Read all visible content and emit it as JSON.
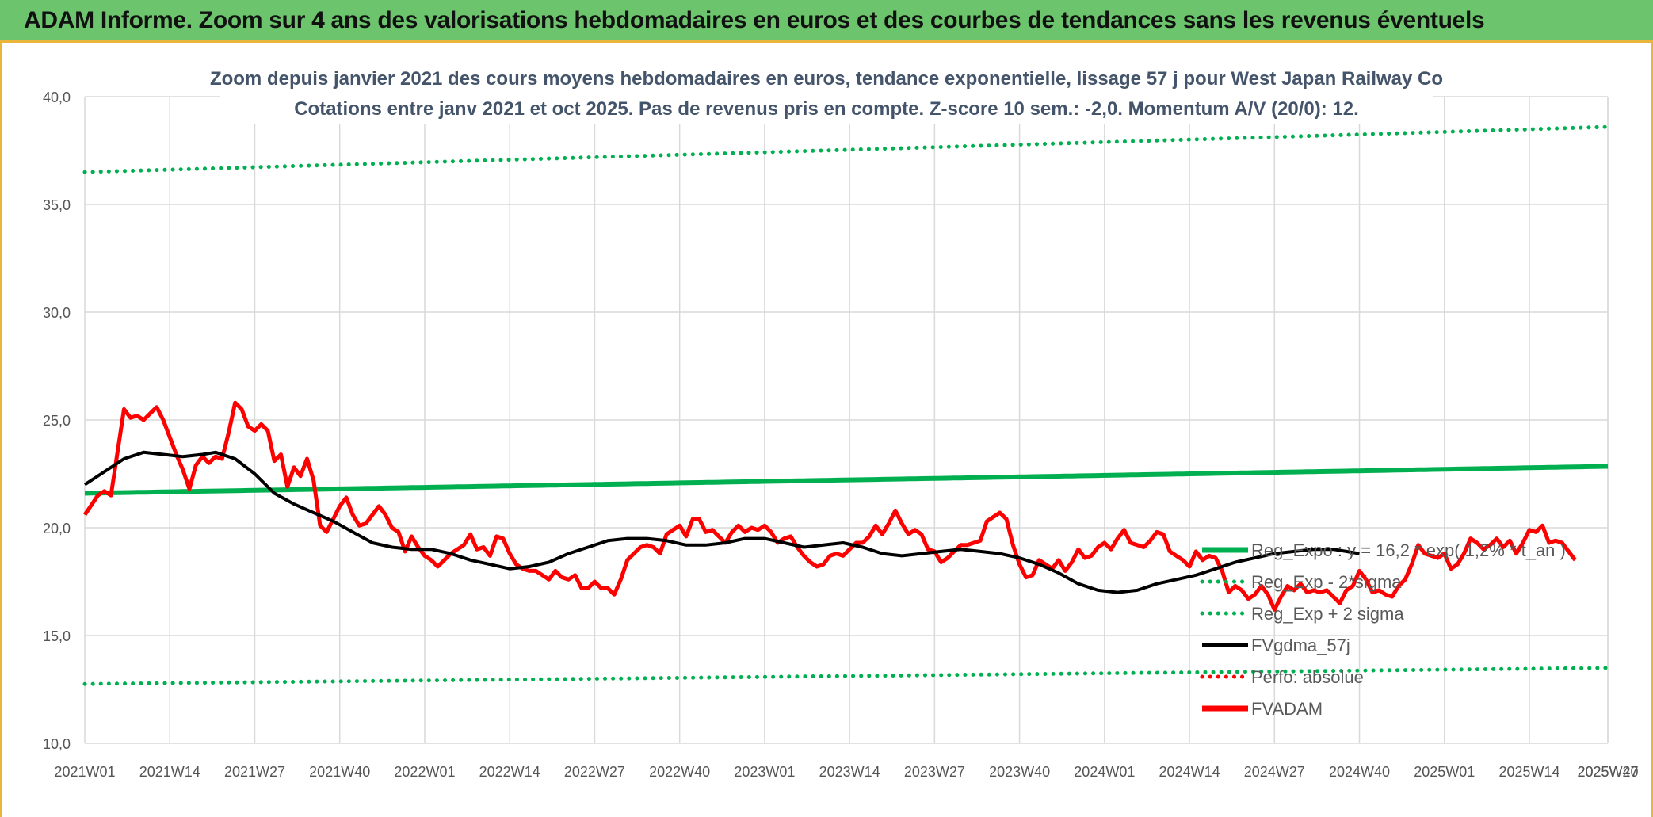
{
  "banner": {
    "title": "ADAM Informe. Zoom sur 4 ans des valorisations hebdomadaires en euros et des courbes de tendances sans les revenus éventuels"
  },
  "chart_data": {
    "type": "line",
    "title": "Zoom depuis janvier 2021 des cours moyens hebdomadaires en euros, tendance exponentielle, lissage 57 j pour West Japan Railway Co",
    "subtitle": "Cotations entre janv 2021 et oct 2025. Pas de revenus pris en compte. Z-score 10 sem.: -2,0. Momentum A/V (20/0): 12.",
    "ylim": [
      10,
      40
    ],
    "y_ticks": [
      "10,0",
      "15,0",
      "20,0",
      "25,0",
      "30,0",
      "35,0",
      "40,0"
    ],
    "x_tick_labels": [
      "2021W01",
      "2021W14",
      "2021W27",
      "2021W40",
      "2022W01",
      "2022W14",
      "2022W27",
      "2022W40",
      "2023W01",
      "2023W14",
      "2023W27",
      "2023W40",
      "2024W01",
      "2024W14",
      "2024W27",
      "2024W40",
      "2025W01",
      "2025W14",
      "2025W27",
      "2025W40"
    ],
    "grid": "vertical and horizontal",
    "legend_position": "right, inside plot",
    "colors": {
      "reg_expo": "#00b050",
      "sigma_minus": "#00b050",
      "sigma_plus": "#00b050",
      "fvgdma": "#000000",
      "perfo": "#ff0000",
      "fvadam": "#ff0000"
    },
    "series": [
      {
        "name": "Reg_Expo : y = 16,2 * exp( 1,2% * t_an )",
        "style": "solid-thick",
        "start": 21.6,
        "end": 22.85
      },
      {
        "name": "Reg_Exp - 2*sigma",
        "style": "dotted",
        "start": 12.75,
        "end": 13.5
      },
      {
        "name": "Reg_Exp + 2 sigma",
        "style": "dotted",
        "start": 36.5,
        "end": 38.6
      },
      {
        "name": "FVgdma_57j",
        "style": "solid",
        "keypoints": [
          [
            0,
            22.0
          ],
          [
            3,
            22.6
          ],
          [
            6,
            23.2
          ],
          [
            9,
            23.5
          ],
          [
            12,
            23.4
          ],
          [
            15,
            23.3
          ],
          [
            18,
            23.4
          ],
          [
            20,
            23.5
          ],
          [
            23,
            23.2
          ],
          [
            26,
            22.5
          ],
          [
            29,
            21.6
          ],
          [
            32,
            21.1
          ],
          [
            35,
            20.7
          ],
          [
            38,
            20.3
          ],
          [
            41,
            19.8
          ],
          [
            44,
            19.3
          ],
          [
            47,
            19.1
          ],
          [
            50,
            19.0
          ],
          [
            53,
            19.0
          ],
          [
            56,
            18.8
          ],
          [
            59,
            18.5
          ],
          [
            62,
            18.3
          ],
          [
            65,
            18.1
          ],
          [
            68,
            18.2
          ],
          [
            71,
            18.4
          ],
          [
            74,
            18.8
          ],
          [
            77,
            19.1
          ],
          [
            80,
            19.4
          ],
          [
            83,
            19.5
          ],
          [
            86,
            19.5
          ],
          [
            89,
            19.4
          ],
          [
            92,
            19.2
          ],
          [
            95,
            19.2
          ],
          [
            98,
            19.3
          ],
          [
            101,
            19.5
          ],
          [
            104,
            19.5
          ],
          [
            107,
            19.3
          ],
          [
            110,
            19.1
          ],
          [
            113,
            19.2
          ],
          [
            116,
            19.3
          ],
          [
            119,
            19.1
          ],
          [
            122,
            18.8
          ],
          [
            125,
            18.7
          ],
          [
            128,
            18.8
          ],
          [
            131,
            18.9
          ],
          [
            134,
            19.0
          ],
          [
            137,
            18.9
          ],
          [
            140,
            18.8
          ],
          [
            143,
            18.6
          ],
          [
            146,
            18.3
          ],
          [
            149,
            17.9
          ],
          [
            152,
            17.4
          ],
          [
            155,
            17.1
          ],
          [
            158,
            17.0
          ],
          [
            161,
            17.1
          ],
          [
            164,
            17.4
          ],
          [
            167,
            17.6
          ],
          [
            170,
            17.8
          ],
          [
            173,
            18.1
          ],
          [
            176,
            18.4
          ],
          [
            179,
            18.6
          ],
          [
            182,
            18.8
          ],
          [
            185,
            18.9
          ],
          [
            188,
            19.0
          ],
          [
            191,
            19.0
          ],
          [
            193,
            18.9
          ],
          [
            195,
            18.8
          ]
        ]
      },
      {
        "name": "Perfo: absolue",
        "style": "dotted"
      },
      {
        "name": "FVADAM",
        "style": "solid-thick",
        "keypoints": [
          [
            0,
            20.6
          ],
          [
            2,
            21.5
          ],
          [
            3,
            21.7
          ],
          [
            4,
            21.5
          ],
          [
            6,
            25.5
          ],
          [
            7,
            25.1
          ],
          [
            8,
            25.2
          ],
          [
            9,
            25.0
          ],
          [
            11,
            25.6
          ],
          [
            12,
            25.0
          ],
          [
            14,
            23.4
          ],
          [
            15,
            22.7
          ],
          [
            16,
            21.8
          ],
          [
            17,
            22.9
          ],
          [
            18,
            23.3
          ],
          [
            19,
            23.0
          ],
          [
            20,
            23.3
          ],
          [
            21,
            23.2
          ],
          [
            22,
            24.4
          ],
          [
            23,
            25.8
          ],
          [
            24,
            25.5
          ],
          [
            25,
            24.7
          ],
          [
            26,
            24.5
          ],
          [
            27,
            24.8
          ],
          [
            28,
            24.5
          ],
          [
            29,
            23.1
          ],
          [
            30,
            23.4
          ],
          [
            31,
            21.9
          ],
          [
            32,
            22.8
          ],
          [
            33,
            22.4
          ],
          [
            34,
            23.2
          ],
          [
            35,
            22.2
          ],
          [
            36,
            20.1
          ],
          [
            37,
            19.8
          ],
          [
            38,
            20.4
          ],
          [
            39,
            21.0
          ],
          [
            40,
            21.4
          ],
          [
            41,
            20.6
          ],
          [
            42,
            20.1
          ],
          [
            43,
            20.2
          ],
          [
            44,
            20.6
          ],
          [
            45,
            21.0
          ],
          [
            46,
            20.6
          ],
          [
            47,
            20.0
          ],
          [
            48,
            19.8
          ],
          [
            49,
            18.9
          ],
          [
            50,
            19.6
          ],
          [
            51,
            19.1
          ],
          [
            52,
            18.7
          ],
          [
            53,
            18.5
          ],
          [
            54,
            18.2
          ],
          [
            55,
            18.5
          ],
          [
            56,
            18.8
          ],
          [
            57,
            19.0
          ],
          [
            58,
            19.2
          ],
          [
            59,
            19.7
          ],
          [
            60,
            19.0
          ],
          [
            61,
            19.1
          ],
          [
            62,
            18.7
          ],
          [
            63,
            19.6
          ],
          [
            64,
            19.5
          ],
          [
            65,
            18.8
          ],
          [
            66,
            18.3
          ],
          [
            67,
            18.1
          ],
          [
            68,
            18.0
          ],
          [
            69,
            18.0
          ],
          [
            70,
            17.8
          ],
          [
            71,
            17.6
          ],
          [
            72,
            18.0
          ],
          [
            73,
            17.7
          ],
          [
            74,
            17.6
          ],
          [
            75,
            17.8
          ],
          [
            76,
            17.2
          ],
          [
            77,
            17.2
          ],
          [
            78,
            17.5
          ],
          [
            79,
            17.2
          ],
          [
            80,
            17.2
          ],
          [
            81,
            16.9
          ],
          [
            82,
            17.6
          ],
          [
            83,
            18.5
          ],
          [
            84,
            18.8
          ],
          [
            85,
            19.1
          ],
          [
            86,
            19.2
          ],
          [
            87,
            19.1
          ],
          [
            88,
            18.8
          ],
          [
            89,
            19.7
          ],
          [
            90,
            19.9
          ],
          [
            91,
            20.1
          ],
          [
            92,
            19.6
          ],
          [
            93,
            20.4
          ],
          [
            94,
            20.4
          ],
          [
            95,
            19.8
          ],
          [
            96,
            19.9
          ],
          [
            97,
            19.6
          ],
          [
            98,
            19.3
          ],
          [
            99,
            19.8
          ],
          [
            100,
            20.1
          ],
          [
            101,
            19.8
          ],
          [
            102,
            20.0
          ],
          [
            103,
            19.9
          ],
          [
            104,
            20.1
          ],
          [
            105,
            19.8
          ],
          [
            106,
            19.3
          ],
          [
            107,
            19.5
          ],
          [
            108,
            19.6
          ],
          [
            109,
            19.1
          ],
          [
            110,
            18.7
          ],
          [
            111,
            18.4
          ],
          [
            112,
            18.2
          ],
          [
            113,
            18.3
          ],
          [
            114,
            18.7
          ],
          [
            115,
            18.8
          ],
          [
            116,
            18.7
          ],
          [
            117,
            19.0
          ],
          [
            118,
            19.3
          ],
          [
            119,
            19.3
          ],
          [
            120,
            19.6
          ],
          [
            121,
            20.1
          ],
          [
            122,
            19.7
          ],
          [
            123,
            20.2
          ],
          [
            124,
            20.8
          ],
          [
            125,
            20.2
          ],
          [
            126,
            19.7
          ],
          [
            127,
            19.9
          ],
          [
            128,
            19.7
          ],
          [
            129,
            19.0
          ],
          [
            130,
            18.9
          ],
          [
            131,
            18.4
          ],
          [
            132,
            18.6
          ],
          [
            133,
            18.9
          ],
          [
            134,
            19.2
          ],
          [
            135,
            19.2
          ],
          [
            136,
            19.3
          ],
          [
            137,
            19.4
          ],
          [
            138,
            20.3
          ],
          [
            139,
            20.5
          ],
          [
            140,
            20.7
          ],
          [
            141,
            20.4
          ],
          [
            142,
            19.2
          ],
          [
            143,
            18.3
          ],
          [
            144,
            17.7
          ],
          [
            145,
            17.8
          ],
          [
            146,
            18.5
          ],
          [
            147,
            18.3
          ],
          [
            148,
            18.1
          ],
          [
            149,
            18.5
          ],
          [
            150,
            18.0
          ],
          [
            151,
            18.4
          ],
          [
            152,
            19.0
          ],
          [
            153,
            18.6
          ],
          [
            154,
            18.7
          ],
          [
            155,
            19.1
          ],
          [
            156,
            19.3
          ],
          [
            157,
            19.0
          ],
          [
            158,
            19.5
          ],
          [
            159,
            19.9
          ],
          [
            160,
            19.3
          ],
          [
            161,
            19.2
          ],
          [
            162,
            19.1
          ],
          [
            163,
            19.4
          ],
          [
            164,
            19.8
          ],
          [
            165,
            19.7
          ],
          [
            166,
            18.9
          ],
          [
            167,
            18.7
          ],
          [
            168,
            18.5
          ],
          [
            169,
            18.2
          ],
          [
            170,
            18.9
          ],
          [
            171,
            18.5
          ],
          [
            172,
            18.7
          ],
          [
            173,
            18.6
          ],
          [
            174,
            18.0
          ],
          [
            175,
            17.0
          ],
          [
            176,
            17.3
          ],
          [
            177,
            17.1
          ],
          [
            178,
            16.7
          ],
          [
            179,
            16.9
          ],
          [
            180,
            17.3
          ],
          [
            181,
            16.9
          ],
          [
            182,
            16.2
          ],
          [
            183,
            16.8
          ],
          [
            184,
            17.3
          ],
          [
            185,
            17.1
          ],
          [
            186,
            17.4
          ],
          [
            187,
            17.0
          ],
          [
            188,
            17.1
          ],
          [
            189,
            17.0
          ],
          [
            190,
            17.1
          ],
          [
            191,
            16.8
          ],
          [
            192,
            16.5
          ],
          [
            193,
            17.1
          ],
          [
            194,
            17.3
          ],
          [
            195,
            18.0
          ],
          [
            196,
            17.6
          ],
          [
            197,
            17.0
          ],
          [
            198,
            17.1
          ],
          [
            199,
            16.9
          ],
          [
            200,
            16.8
          ],
          [
            201,
            17.3
          ],
          [
            202,
            17.6
          ],
          [
            203,
            18.3
          ],
          [
            204,
            19.2
          ],
          [
            205,
            18.8
          ],
          [
            206,
            18.7
          ],
          [
            207,
            18.6
          ],
          [
            208,
            18.8
          ],
          [
            209,
            18.1
          ],
          [
            210,
            18.3
          ],
          [
            211,
            18.8
          ],
          [
            212,
            19.5
          ],
          [
            213,
            19.3
          ],
          [
            214,
            19.0
          ],
          [
            215,
            19.2
          ],
          [
            216,
            19.5
          ],
          [
            217,
            19.1
          ],
          [
            218,
            19.4
          ],
          [
            219,
            18.8
          ],
          [
            220,
            19.3
          ],
          [
            221,
            19.9
          ],
          [
            222,
            19.8
          ],
          [
            223,
            20.1
          ],
          [
            224,
            19.3
          ],
          [
            225,
            19.4
          ],
          [
            226,
            19.3
          ],
          [
            227,
            18.9
          ],
          [
            228,
            18.5
          ]
        ]
      }
    ]
  }
}
